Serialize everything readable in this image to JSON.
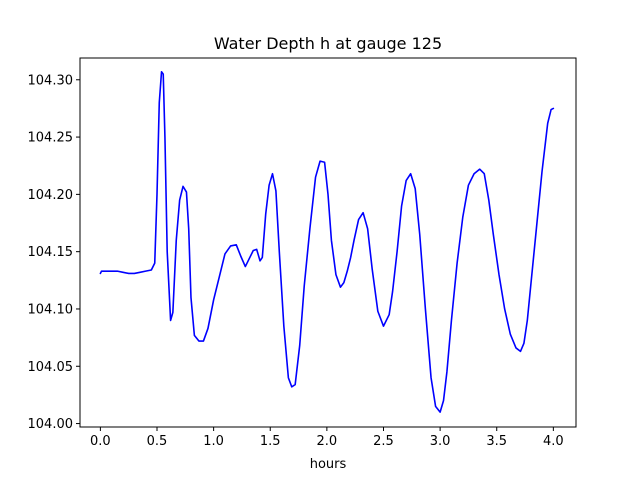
{
  "chart_data": {
    "type": "line",
    "title": "Water Depth h at gauge 125",
    "xlabel": "hours",
    "ylabel": "",
    "xlim": [
      -0.18,
      4.2
    ],
    "ylim": [
      103.997,
      104.319
    ],
    "xticks": [
      0.0,
      0.5,
      1.0,
      1.5,
      2.0,
      2.5,
      3.0,
      3.5,
      4.0
    ],
    "xtick_labels": [
      "0.0",
      "0.5",
      "1.0",
      "1.5",
      "2.0",
      "2.5",
      "3.0",
      "3.5",
      "4.0"
    ],
    "yticks": [
      104.0,
      104.05,
      104.1,
      104.15,
      104.2,
      104.25,
      104.3
    ],
    "ytick_labels": [
      "104.00",
      "104.05",
      "104.10",
      "104.15",
      "104.20",
      "104.25",
      "104.30"
    ],
    "grid": false,
    "series": [
      {
        "color": "#0000ff",
        "x": [
          0.0,
          0.01,
          0.05,
          0.1,
          0.15,
          0.2,
          0.25,
          0.3,
          0.35,
          0.4,
          0.45,
          0.48,
          0.5,
          0.52,
          0.54,
          0.555,
          0.57,
          0.59,
          0.62,
          0.64,
          0.67,
          0.7,
          0.73,
          0.76,
          0.78,
          0.8,
          0.83,
          0.87,
          0.91,
          0.95,
          1.0,
          1.05,
          1.1,
          1.15,
          1.2,
          1.24,
          1.28,
          1.31,
          1.35,
          1.38,
          1.41,
          1.43,
          1.46,
          1.49,
          1.52,
          1.55,
          1.58,
          1.62,
          1.66,
          1.69,
          1.72,
          1.76,
          1.8,
          1.85,
          1.9,
          1.94,
          1.98,
          2.01,
          2.04,
          2.08,
          2.12,
          2.15,
          2.18,
          2.21,
          2.24,
          2.28,
          2.32,
          2.36,
          2.4,
          2.45,
          2.5,
          2.55,
          2.58,
          2.62,
          2.66,
          2.7,
          2.74,
          2.78,
          2.82,
          2.87,
          2.92,
          2.96,
          3.0,
          3.03,
          3.06,
          3.1,
          3.15,
          3.2,
          3.25,
          3.3,
          3.35,
          3.39,
          3.43,
          3.47,
          3.52,
          3.57,
          3.62,
          3.67,
          3.71,
          3.74,
          3.77,
          3.8,
          3.85,
          3.9,
          3.95,
          3.98,
          4.0
        ],
        "y": [
          104.131,
          104.133,
          104.133,
          104.133,
          104.133,
          104.132,
          104.131,
          104.131,
          104.132,
          104.133,
          104.134,
          104.14,
          104.2,
          104.28,
          104.307,
          104.305,
          104.25,
          104.15,
          104.09,
          104.097,
          104.16,
          104.195,
          104.207,
          104.202,
          104.17,
          104.11,
          104.077,
          104.072,
          104.072,
          104.083,
          104.108,
          104.128,
          104.148,
          104.155,
          104.156,
          104.146,
          104.137,
          104.143,
          104.151,
          104.152,
          104.142,
          104.145,
          104.183,
          104.208,
          104.218,
          104.203,
          104.15,
          104.085,
          104.04,
          104.032,
          104.034,
          104.068,
          104.12,
          104.17,
          104.215,
          104.229,
          104.228,
          104.2,
          104.16,
          104.13,
          104.119,
          104.123,
          104.133,
          104.145,
          104.16,
          104.178,
          104.184,
          104.17,
          104.135,
          104.098,
          104.085,
          104.095,
          104.115,
          104.15,
          104.19,
          104.212,
          104.218,
          104.205,
          104.165,
          104.1,
          104.04,
          104.015,
          104.01,
          104.02,
          104.045,
          104.09,
          104.14,
          104.18,
          104.208,
          104.218,
          104.222,
          104.218,
          104.195,
          104.165,
          104.13,
          104.1,
          104.078,
          104.066,
          104.063,
          104.07,
          104.09,
          104.12,
          104.17,
          104.22,
          104.262,
          104.274,
          104.275
        ]
      }
    ]
  }
}
